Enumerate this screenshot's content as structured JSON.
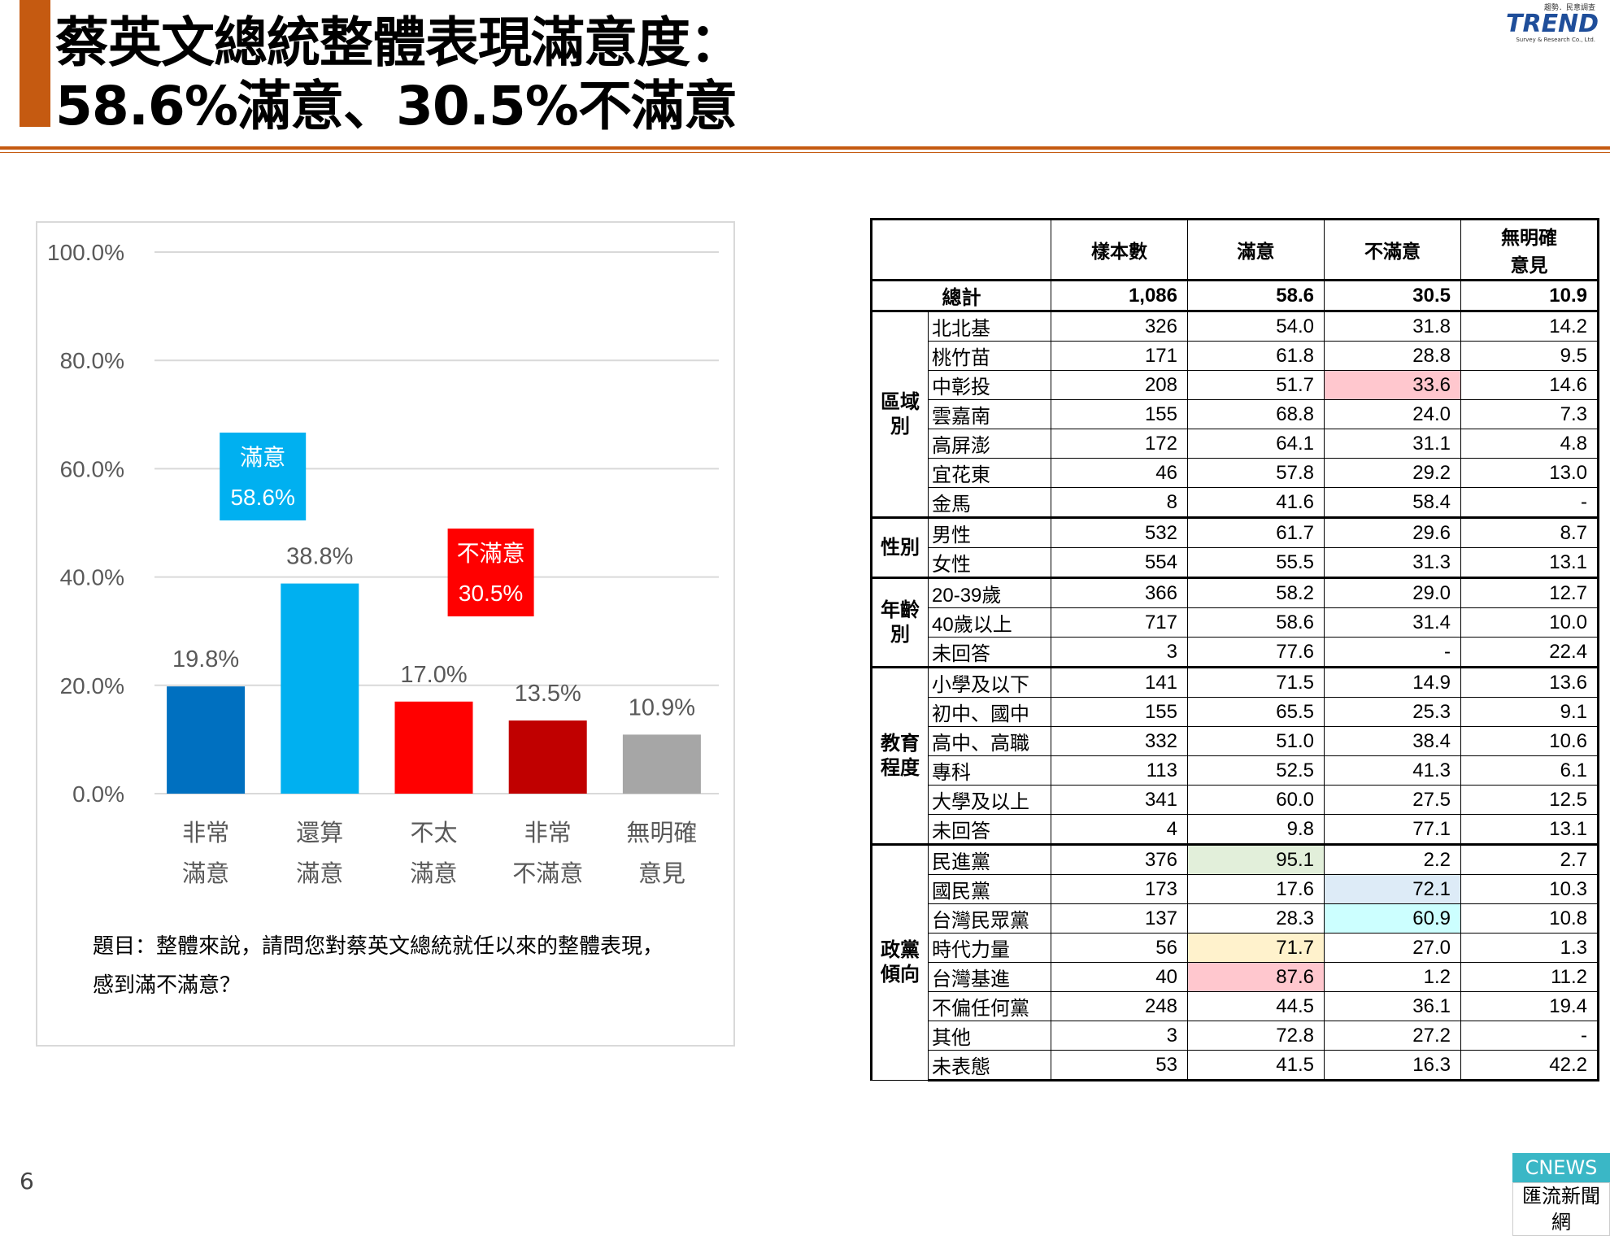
{
  "header": {
    "title_line1": "蔡英文總統整體表現滿意度：",
    "title_line2": "58.6%滿意、30.5%不滿意",
    "accent_color": "#c55a11"
  },
  "logo": {
    "small": "趨勢．民意調查",
    "main": "TREND",
    "sub": "Survey & Research Co., Ltd."
  },
  "chart_data": {
    "type": "bar",
    "categories": [
      [
        "非常",
        "滿意"
      ],
      [
        "還算",
        "滿意"
      ],
      [
        "不太",
        "滿意"
      ],
      [
        "非常",
        "不滿意"
      ],
      [
        "無明確",
        "意見"
      ]
    ],
    "values": [
      19.8,
      38.8,
      17.0,
      13.5,
      10.9
    ],
    "value_labels": [
      "19.8%",
      "38.8%",
      "17.0%",
      "13.5%",
      "10.9%"
    ],
    "colors": [
      "#0070c0",
      "#00b0f0",
      "#ff0000",
      "#c00000",
      "#a6a6a6"
    ],
    "ylim": [
      0,
      100
    ],
    "yticks": [
      "0.0%",
      "20.0%",
      "40.0%",
      "60.0%",
      "80.0%",
      "100.0%"
    ],
    "grid": true,
    "annotations": [
      {
        "label": "滿意",
        "value": "58.6%",
        "color": "#00b0f0",
        "over": [
          0,
          1
        ]
      },
      {
        "label": "不滿意",
        "value": "30.5%",
        "color": "#ff0000",
        "over": [
          2,
          3
        ]
      }
    ]
  },
  "question": {
    "line1": "題目：整體來說，請問您對蔡英文總統就任以來的整體表現，",
    "line2": "感到滿不滿意？"
  },
  "table": {
    "headers": [
      "樣本數",
      "滿意",
      "不滿意",
      [
        "無明確",
        "意見"
      ]
    ],
    "total": {
      "label": "總計",
      "values": [
        "1,086",
        "58.6",
        "30.5",
        "10.9"
      ]
    },
    "groups": [
      {
        "name": [
          "區域",
          "別"
        ],
        "rows": [
          {
            "label": "北北基",
            "values": [
              "326",
              "54.0",
              "31.8",
              "14.2"
            ]
          },
          {
            "label": "桃竹苗",
            "values": [
              "171",
              "61.8",
              "28.8",
              "9.5"
            ]
          },
          {
            "label": "中彰投",
            "values": [
              "208",
              "51.7",
              "33.6",
              "14.6"
            ],
            "hl": {
              "2": "#ffc7ce"
            }
          },
          {
            "label": "雲嘉南",
            "values": [
              "155",
              "68.8",
              "24.0",
              "7.3"
            ]
          },
          {
            "label": "高屏澎",
            "values": [
              "172",
              "64.1",
              "31.1",
              "4.8"
            ]
          },
          {
            "label": "宜花東",
            "values": [
              "46",
              "57.8",
              "29.2",
              "13.0"
            ]
          },
          {
            "label": "金馬",
            "values": [
              "8",
              "41.6",
              "58.4",
              "-"
            ]
          }
        ]
      },
      {
        "name": [
          "性別"
        ],
        "rows": [
          {
            "label": "男性",
            "values": [
              "532",
              "61.7",
              "29.6",
              "8.7"
            ]
          },
          {
            "label": "女性",
            "values": [
              "554",
              "55.5",
              "31.3",
              "13.1"
            ]
          }
        ]
      },
      {
        "name": [
          "年齡",
          "別"
        ],
        "rows": [
          {
            "label": "20-39歲",
            "values": [
              "366",
              "58.2",
              "29.0",
              "12.7"
            ]
          },
          {
            "label": "40歲以上",
            "values": [
              "717",
              "58.6",
              "31.4",
              "10.0"
            ]
          },
          {
            "label": "未回答",
            "values": [
              "3",
              "77.6",
              "-",
              "22.4"
            ]
          }
        ]
      },
      {
        "name": [
          "教育",
          "程度"
        ],
        "rows": [
          {
            "label": "小學及以下",
            "values": [
              "141",
              "71.5",
              "14.9",
              "13.6"
            ]
          },
          {
            "label": "初中、國中",
            "values": [
              "155",
              "65.5",
              "25.3",
              "9.1"
            ]
          },
          {
            "label": "高中、高職",
            "values": [
              "332",
              "51.0",
              "38.4",
              "10.6"
            ]
          },
          {
            "label": "專科",
            "values": [
              "113",
              "52.5",
              "41.3",
              "6.1"
            ]
          },
          {
            "label": "大學及以上",
            "values": [
              "341",
              "60.0",
              "27.5",
              "12.5"
            ]
          },
          {
            "label": "未回答",
            "values": [
              "4",
              "9.8",
              "77.1",
              "13.1"
            ]
          }
        ]
      },
      {
        "name": [
          "政黨",
          "傾向"
        ],
        "rows": [
          {
            "label": "民進黨",
            "values": [
              "376",
              "95.1",
              "2.2",
              "2.7"
            ],
            "hl": {
              "1": "#e2efda"
            }
          },
          {
            "label": "國民黨",
            "values": [
              "173",
              "17.6",
              "72.1",
              "10.3"
            ],
            "hl": {
              "2": "#ddebf7"
            }
          },
          {
            "label": "台灣民眾黨",
            "values": [
              "137",
              "28.3",
              "60.9",
              "10.8"
            ],
            "hl": {
              "2": "#ccffff"
            }
          },
          {
            "label": "時代力量",
            "values": [
              "56",
              "71.7",
              "27.0",
              "1.3"
            ],
            "hl": {
              "1": "#fff2cc"
            }
          },
          {
            "label": "台灣基進",
            "values": [
              "40",
              "87.6",
              "1.2",
              "11.2"
            ],
            "hl": {
              "1": "#ffc7ce"
            }
          },
          {
            "label": "不偏任何黨",
            "values": [
              "248",
              "44.5",
              "36.1",
              "19.4"
            ]
          },
          {
            "label": "其他",
            "values": [
              "3",
              "72.8",
              "27.2",
              "-"
            ]
          },
          {
            "label": "未表態",
            "values": [
              "53",
              "41.5",
              "16.3",
              "42.2"
            ]
          }
        ]
      }
    ]
  },
  "footer": {
    "page_number": "6",
    "brand_top": "CNEWS",
    "brand_bottom": "匯流新聞網",
    "brand_color": "#3ab7c6"
  }
}
